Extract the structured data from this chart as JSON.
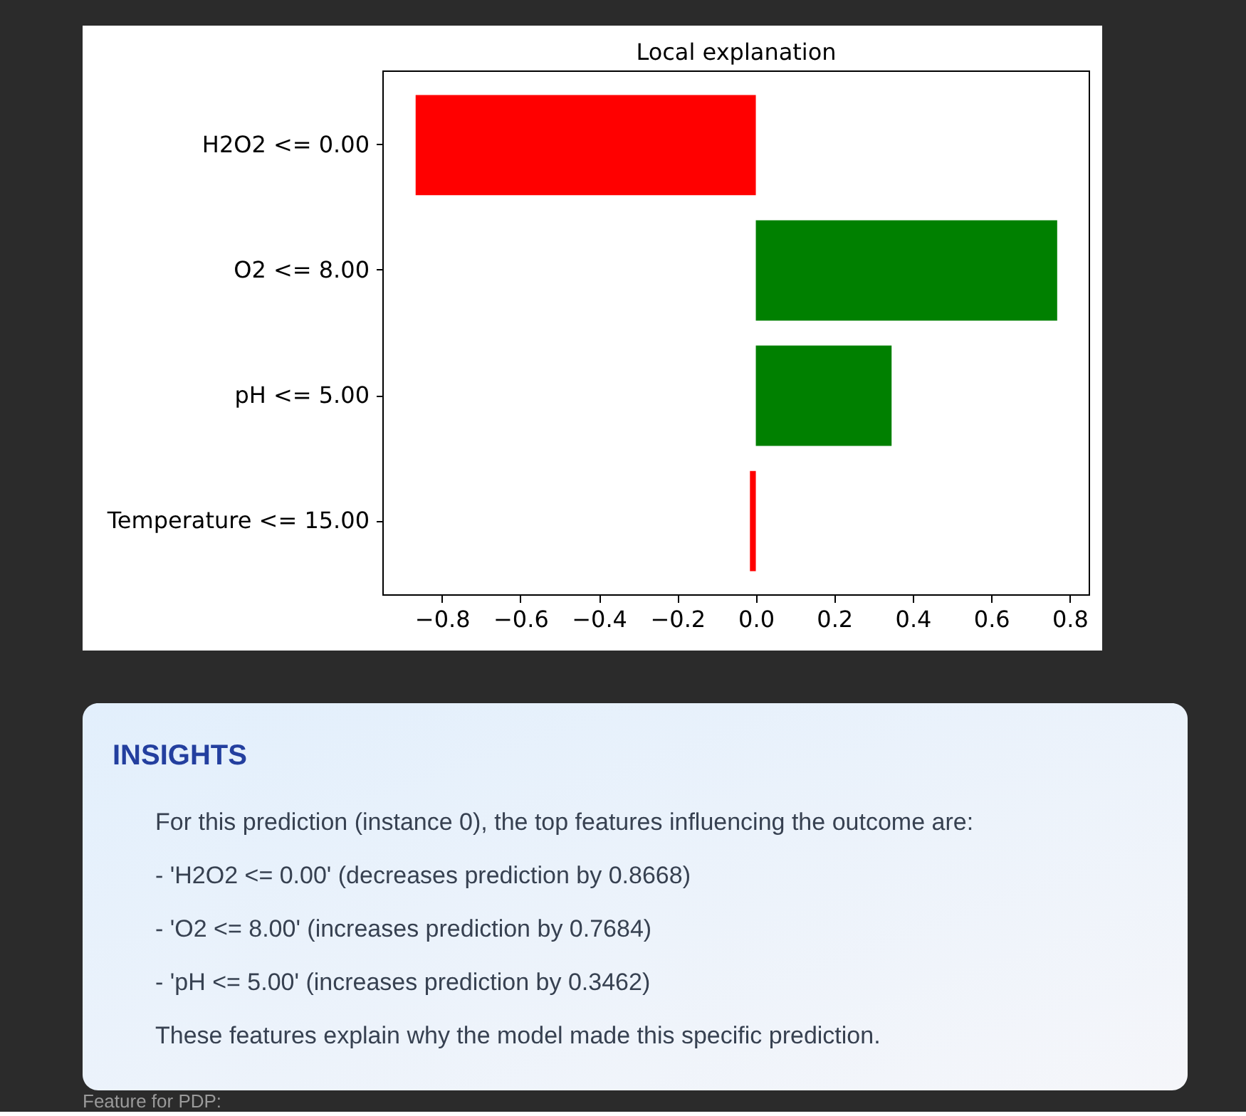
{
  "chart_data": [
    {
      "type": "bar",
      "orientation": "horizontal",
      "title": "Local explanation",
      "categories": [
        "H2O2 <= 0.00",
        "O2 <= 8.00",
        "pH <= 5.00",
        "Temperature <= 15.00"
      ],
      "values": [
        -0.867,
        0.768,
        0.346,
        -0.015
      ],
      "colors": [
        "#ff0000",
        "#008000",
        "#008000",
        "#ff0000"
      ],
      "xlim": [
        -0.95,
        0.85
      ],
      "xticks": [
        {
          "value": -0.8,
          "label": "−0.8"
        },
        {
          "value": -0.6,
          "label": "−0.6"
        },
        {
          "value": -0.4,
          "label": "−0.4"
        },
        {
          "value": -0.2,
          "label": "−0.2"
        },
        {
          "value": 0,
          "label": "0.0"
        },
        0.2,
        0.4,
        0.6,
        0.8
      ]
    },
    {
      "type": "other",
      "title": "INSIGHTS",
      "annotations": [
        "For this prediction (instance 0), the top features influencing the outcome are:",
        "- 'H2O2 <= 0.00' (decreases prediction by 0.8668)",
        "- 'O2 <= 8.00' (increases prediction by 0.7684)",
        "- 'pH <= 5.00' (increases prediction by 0.3462)",
        "These features explain why the model made this specific prediction."
      ]
    },
    {
      "type": "other",
      "title": "Feature for PDP:"
    }
  ]
}
